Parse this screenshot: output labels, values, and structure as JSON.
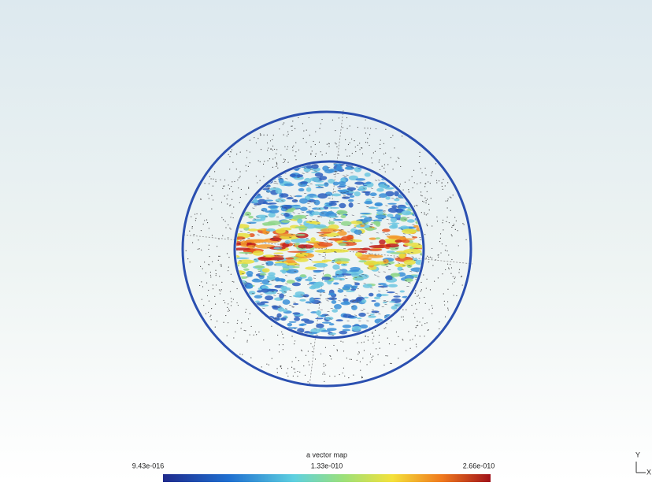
{
  "legend": {
    "title": "a vector map",
    "min_label": "9.43e-016",
    "mid_label": "1.33e-010",
    "max_label": "2.66e-010"
  },
  "axes": {
    "y": "Y",
    "x": "X"
  }
}
